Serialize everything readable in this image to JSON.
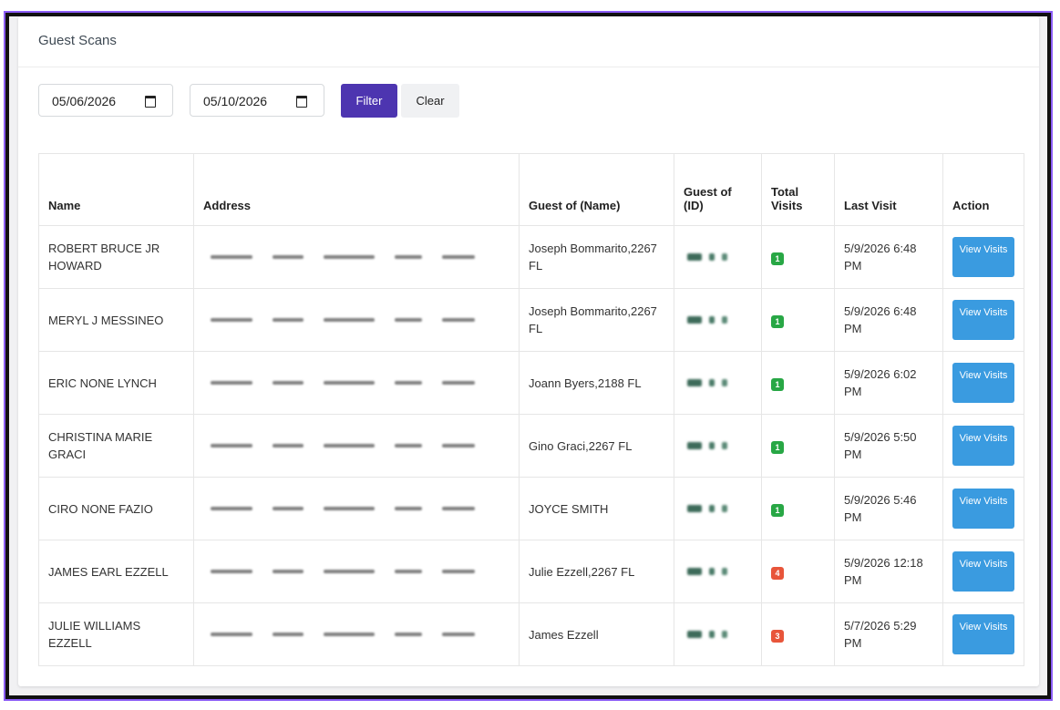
{
  "panel": {
    "title": "Guest Scans"
  },
  "filters": {
    "start_date": "05/06/2026",
    "end_date": "05/10/2026",
    "filter_label": "Filter",
    "clear_label": "Clear"
  },
  "table": {
    "headers": {
      "name": "Name",
      "address": "Address",
      "guest_of_name": "Guest of (Name)",
      "guest_of_id": "Guest of (ID)",
      "total_visits": "Total Visits",
      "last_visit": "Last Visit",
      "action": "Action"
    },
    "rows": [
      {
        "name": "ROBERT BRUCE JR HOWARD",
        "guest_of_name": "Joseph Bommarito,2267 FL",
        "total_visits": "1",
        "badge_color": "#28a745",
        "last_visit": "5/9/2026 6:48 PM",
        "action": "View Visits"
      },
      {
        "name": "MERYL J MESSINEO",
        "guest_of_name": "Joseph Bommarito,2267 FL",
        "total_visits": "1",
        "badge_color": "#28a745",
        "last_visit": "5/9/2026 6:48 PM",
        "action": "View Visits"
      },
      {
        "name": "ERIC NONE LYNCH",
        "guest_of_name": "Joann Byers,2188 FL",
        "total_visits": "1",
        "badge_color": "#28a745",
        "last_visit": "5/9/2026 6:02 PM",
        "action": "View Visits"
      },
      {
        "name": "CHRISTINA MARIE GRACI",
        "guest_of_name": "Gino Graci,2267 FL",
        "total_visits": "1",
        "badge_color": "#28a745",
        "last_visit": "5/9/2026 5:50 PM",
        "action": "View Visits"
      },
      {
        "name": "CIRO NONE FAZIO",
        "guest_of_name": "JOYCE SMITH",
        "total_visits": "1",
        "badge_color": "#28a745",
        "last_visit": "5/9/2026 5:46 PM",
        "action": "View Visits"
      },
      {
        "name": "JAMES EARL EZZELL",
        "guest_of_name": "Julie Ezzell,2267 FL",
        "total_visits": "4",
        "badge_color": "#e8553a",
        "last_visit": "5/9/2026 12:18 PM",
        "action": "View Visits"
      },
      {
        "name": "JULIE WILLIAMS EZZELL",
        "guest_of_name": "James Ezzell",
        "total_visits": "3",
        "badge_color": "#e8553a",
        "last_visit": "5/7/2026 5:29 PM",
        "action": "View Visits"
      }
    ]
  }
}
